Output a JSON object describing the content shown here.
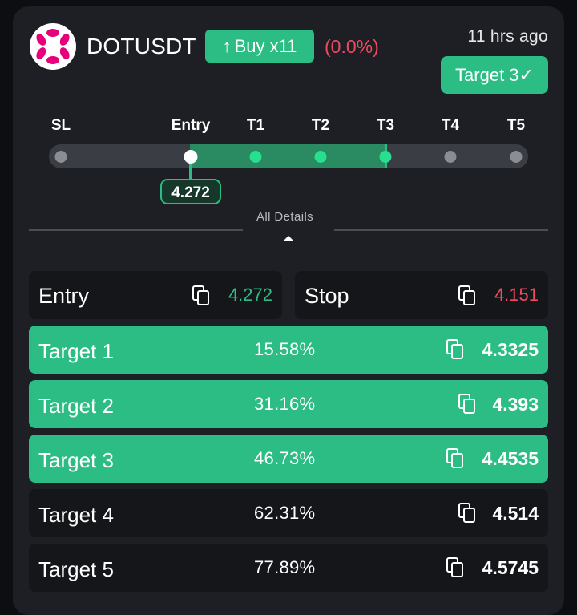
{
  "header": {
    "symbol": "DOTUSDT",
    "side_label": "Buy x11",
    "change_pct": "(0.0%)",
    "time_ago": "11 hrs ago",
    "status_badge": "Target 3✓",
    "logo_icon": "polkadot-logo-icon"
  },
  "colors": {
    "accent_green": "#2bbd84",
    "loss_red": "#ef4b5f",
    "card_bg": "#1d1f24"
  },
  "progress": {
    "labels": [
      "SL",
      "Entry",
      "T1",
      "T2",
      "T3",
      "T4",
      "T5"
    ],
    "entry_price": "4.272",
    "reached_levels": [
      "T1",
      "T2",
      "T3"
    ]
  },
  "details_toggle": "All Details",
  "entry_box": {
    "label": "Entry",
    "value": "4.272"
  },
  "stop_box": {
    "label": "Stop",
    "value": "4.151"
  },
  "targets": [
    {
      "label": "Target 1",
      "pct": "15.58%",
      "price": "4.3325",
      "hit": true
    },
    {
      "label": "Target 2",
      "pct": "31.16%",
      "price": "4.393",
      "hit": true
    },
    {
      "label": "Target 3",
      "pct": "46.73%",
      "price": "4.4535",
      "hit": true
    },
    {
      "label": "Target 4",
      "pct": "62.31%",
      "price": "4.514",
      "hit": false
    },
    {
      "label": "Target 5",
      "pct": "77.89%",
      "price": "4.5745",
      "hit": false
    }
  ]
}
